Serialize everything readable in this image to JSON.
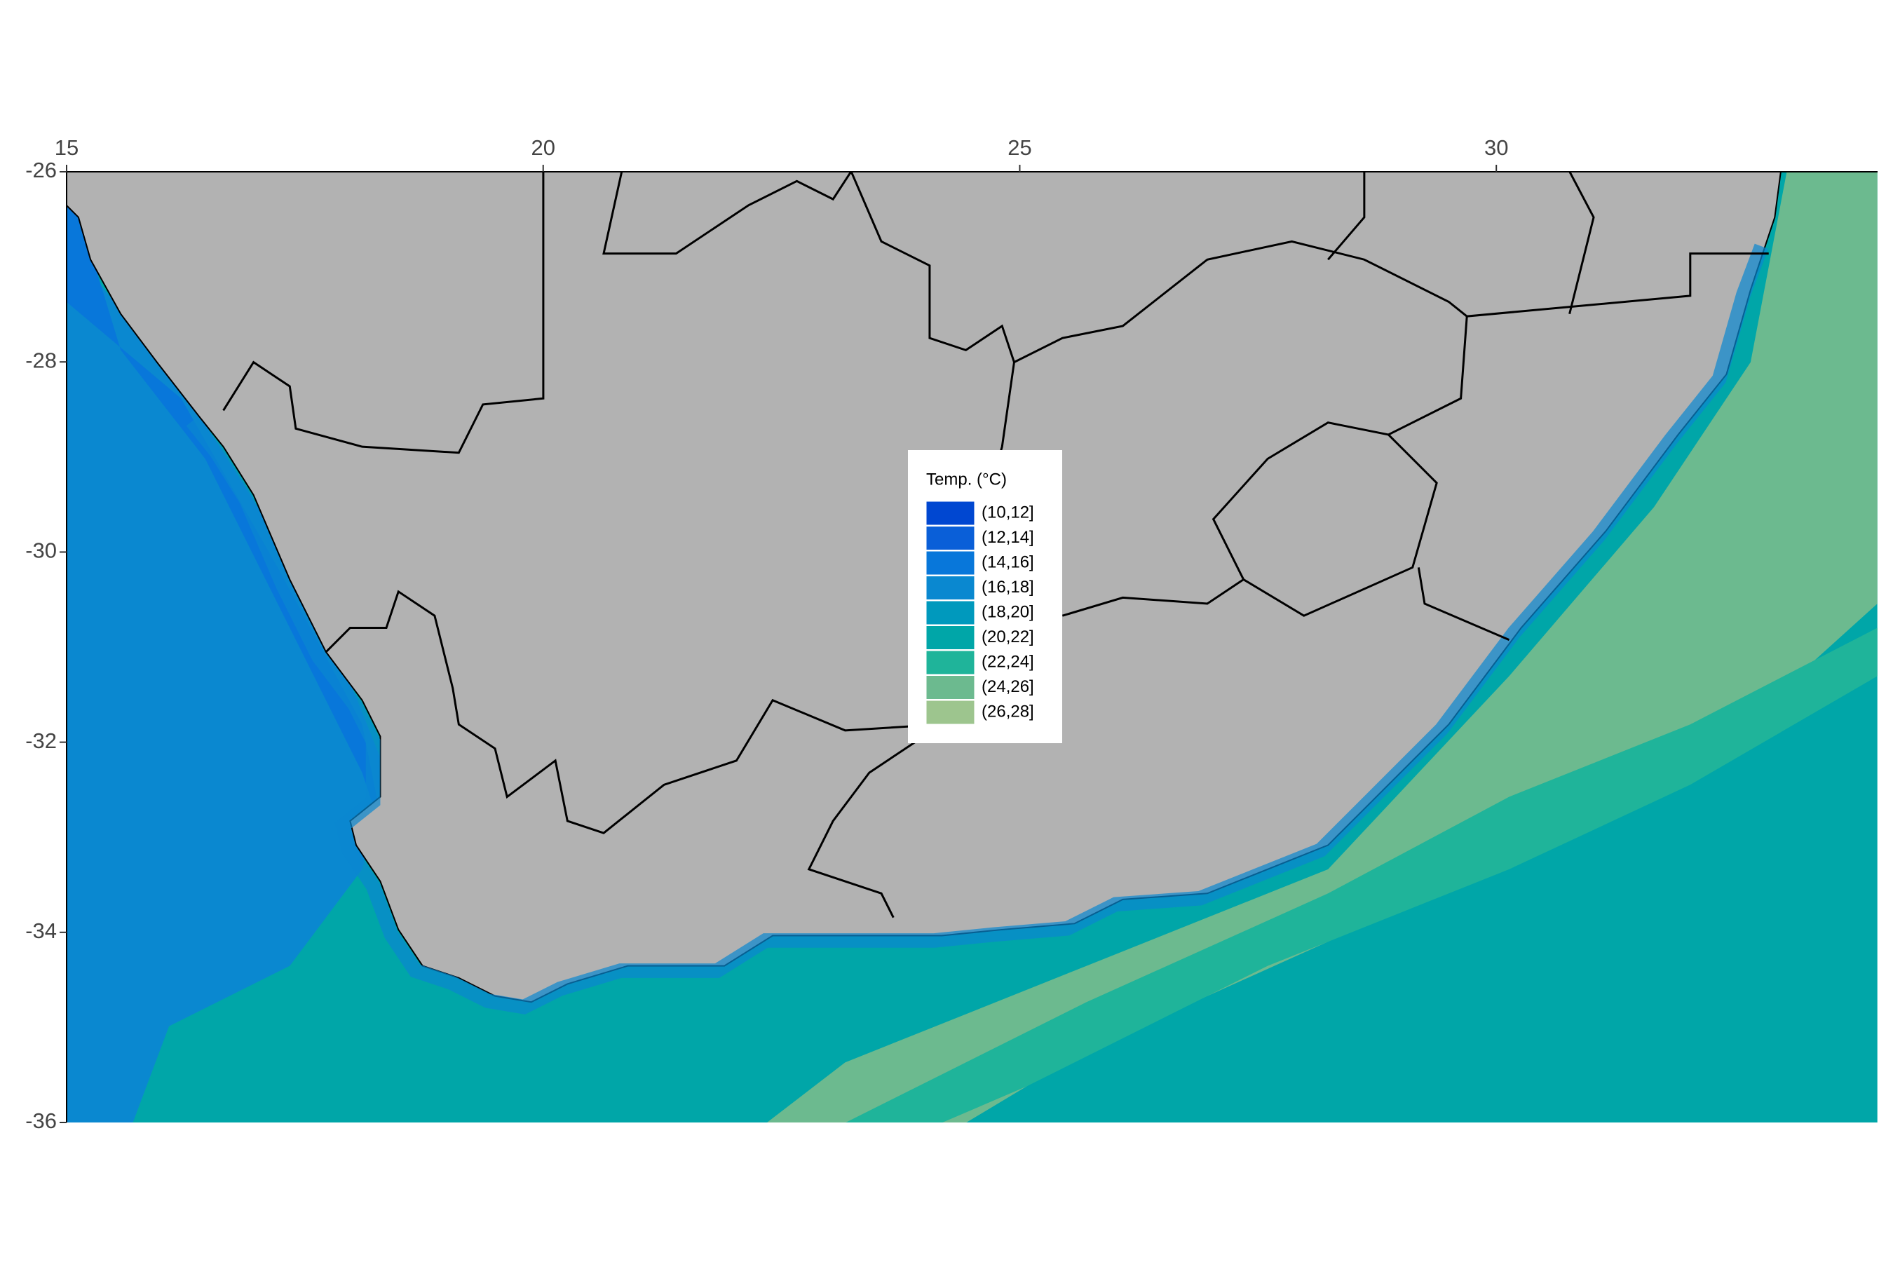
{
  "map": {
    "xlim": [
      15,
      34
    ],
    "ylim": [
      -36,
      -26
    ],
    "xticks": [
      15,
      20,
      25,
      30
    ],
    "yticks": [
      -26,
      -28,
      -30,
      -32,
      -34,
      -36
    ],
    "legend": {
      "title": "Temp. (°C)",
      "items": [
        {
          "label": "(10,12]",
          "color": "#0047d1"
        },
        {
          "label": "(12,14]",
          "color": "#0a5fd8"
        },
        {
          "label": "(14,16]",
          "color": "#0877da"
        },
        {
          "label": "(16,18]",
          "color": "#0a88d0"
        },
        {
          "label": "(18,20]",
          "color": "#0099bd"
        },
        {
          "label": "(20,22]",
          "color": "#00a6a8"
        },
        {
          "label": "(22,24]",
          "color": "#1fb49a"
        },
        {
          "label": "(24,26]",
          "color": "#6cba8f"
        },
        {
          "label": "(26,28]",
          "color": "#9dc58e"
        }
      ]
    }
  }
}
